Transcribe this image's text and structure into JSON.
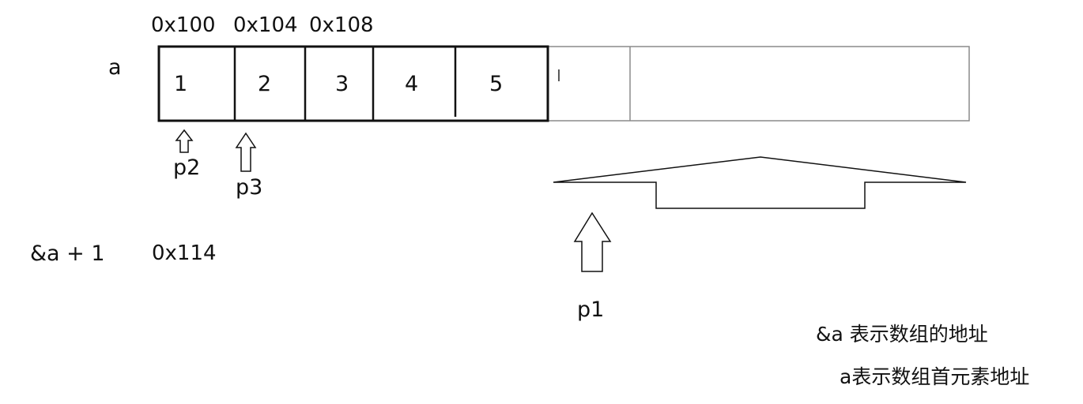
{
  "array_name": "a",
  "addresses": [
    "0x100",
    "0x104",
    "0x108"
  ],
  "cells": [
    "1",
    "2",
    "3",
    "4",
    "5"
  ],
  "pointers": {
    "p1": "p1",
    "p2": "p2",
    "p3": "p3"
  },
  "expression": {
    "label": "&a + 1",
    "value": "0x114"
  },
  "notes": [
    "&a 表示数组的地址",
    "a表示数组首元素地址"
  ],
  "colors": {
    "stroke": "#111111",
    "faint_stroke": "#8a8a8a",
    "background": "#ffffff"
  }
}
